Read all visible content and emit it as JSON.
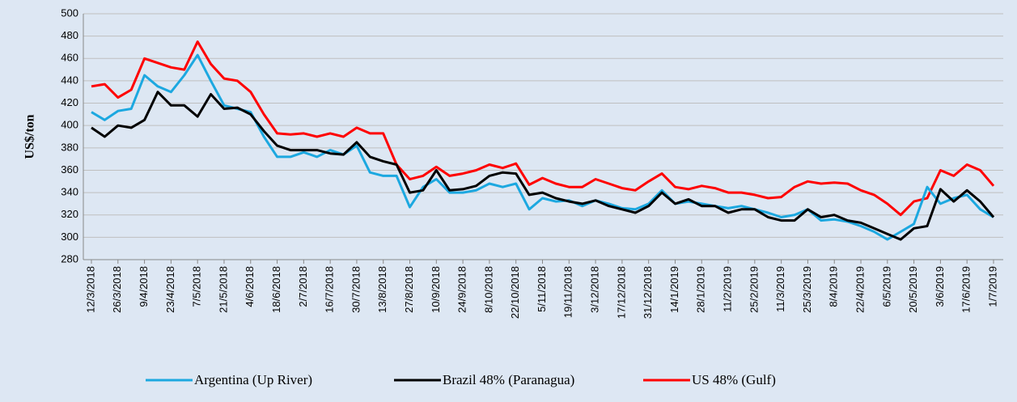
{
  "chart_data": {
    "type": "line",
    "y_label": "US$/ton",
    "categories": [
      "12/3/2018",
      null,
      "26/3/2018",
      null,
      "9/4/2018",
      null,
      "23/4/2018",
      null,
      "7/5/2018",
      null,
      "21/5/2018",
      null,
      "4/6/2018",
      null,
      "18/6/2018",
      null,
      "2/7/2018",
      null,
      "16/7/2018",
      null,
      "30/7/2018",
      null,
      "13/8/2018",
      null,
      "27/8/2018",
      null,
      "10/9/2018",
      null,
      "24/9/2018",
      null,
      "8/10/2018",
      null,
      "22/10/2018",
      null,
      "5/11/2018",
      null,
      "19/11/2018",
      null,
      "3/12/2018",
      null,
      "17/12/2018",
      null,
      "31/12/2018",
      null,
      "14/1/2019",
      null,
      "28/1/2019",
      null,
      "11/2/2019",
      null,
      "25/2/2019",
      null,
      "11/3/2019",
      null,
      "25/3/2019",
      null,
      "8/4/2019",
      null,
      "22/4/2019",
      null,
      "6/5/2019",
      null,
      "20/5/2019",
      null,
      "3/6/2019",
      null,
      "17/6/2019",
      null,
      "1/7/2019"
    ],
    "series": [
      {
        "name": "Argentina (Up River)",
        "color": "#1ca8e0",
        "values": [
          412,
          405,
          413,
          415,
          445,
          435,
          430,
          445,
          463,
          440,
          418,
          415,
          412,
          390,
          372,
          372,
          376,
          372,
          378,
          374,
          382,
          358,
          355,
          355,
          327,
          345,
          352,
          340,
          340,
          342,
          348,
          345,
          348,
          325,
          335,
          332,
          333,
          328,
          333,
          330,
          326,
          325,
          330,
          342,
          330,
          332,
          330,
          328,
          326,
          328,
          325,
          322,
          318,
          320,
          325,
          315,
          316,
          314,
          310,
          305,
          298,
          305,
          312,
          345,
          330,
          335,
          338,
          325,
          318
        ]
      },
      {
        "name": "Brazil 48% (Paranagua)",
        "color": "#000000",
        "values": [
          398,
          390,
          400,
          398,
          405,
          430,
          418,
          418,
          408,
          428,
          415,
          416,
          410,
          395,
          382,
          378,
          378,
          378,
          375,
          374,
          385,
          372,
          368,
          365,
          340,
          342,
          360,
          342,
          343,
          346,
          355,
          358,
          357,
          338,
          340,
          335,
          332,
          330,
          333,
          328,
          325,
          322,
          328,
          340,
          330,
          334,
          328,
          328,
          322,
          325,
          325,
          318,
          315,
          315,
          325,
          318,
          320,
          315,
          313,
          308,
          303,
          298,
          308,
          310,
          343,
          332,
          342,
          332,
          318
        ]
      },
      {
        "name": "US 48% (Gulf)",
        "color": "#ff0000",
        "values": [
          435,
          437,
          425,
          432,
          460,
          456,
          452,
          450,
          475,
          455,
          442,
          440,
          430,
          410,
          393,
          392,
          393,
          390,
          393,
          390,
          398,
          393,
          393,
          365,
          352,
          355,
          363,
          355,
          357,
          360,
          365,
          362,
          366,
          347,
          353,
          348,
          345,
          345,
          352,
          348,
          344,
          342,
          350,
          357,
          345,
          343,
          346,
          344,
          340,
          340,
          338,
          335,
          336,
          345,
          350,
          348,
          349,
          348,
          342,
          338,
          330,
          320,
          332,
          335,
          360,
          355,
          365,
          360,
          346
        ]
      }
    ],
    "ylim": [
      280,
      500
    ],
    "yticks": [
      280,
      300,
      320,
      340,
      360,
      380,
      400,
      420,
      440,
      460,
      480,
      500
    ],
    "grid": true
  }
}
